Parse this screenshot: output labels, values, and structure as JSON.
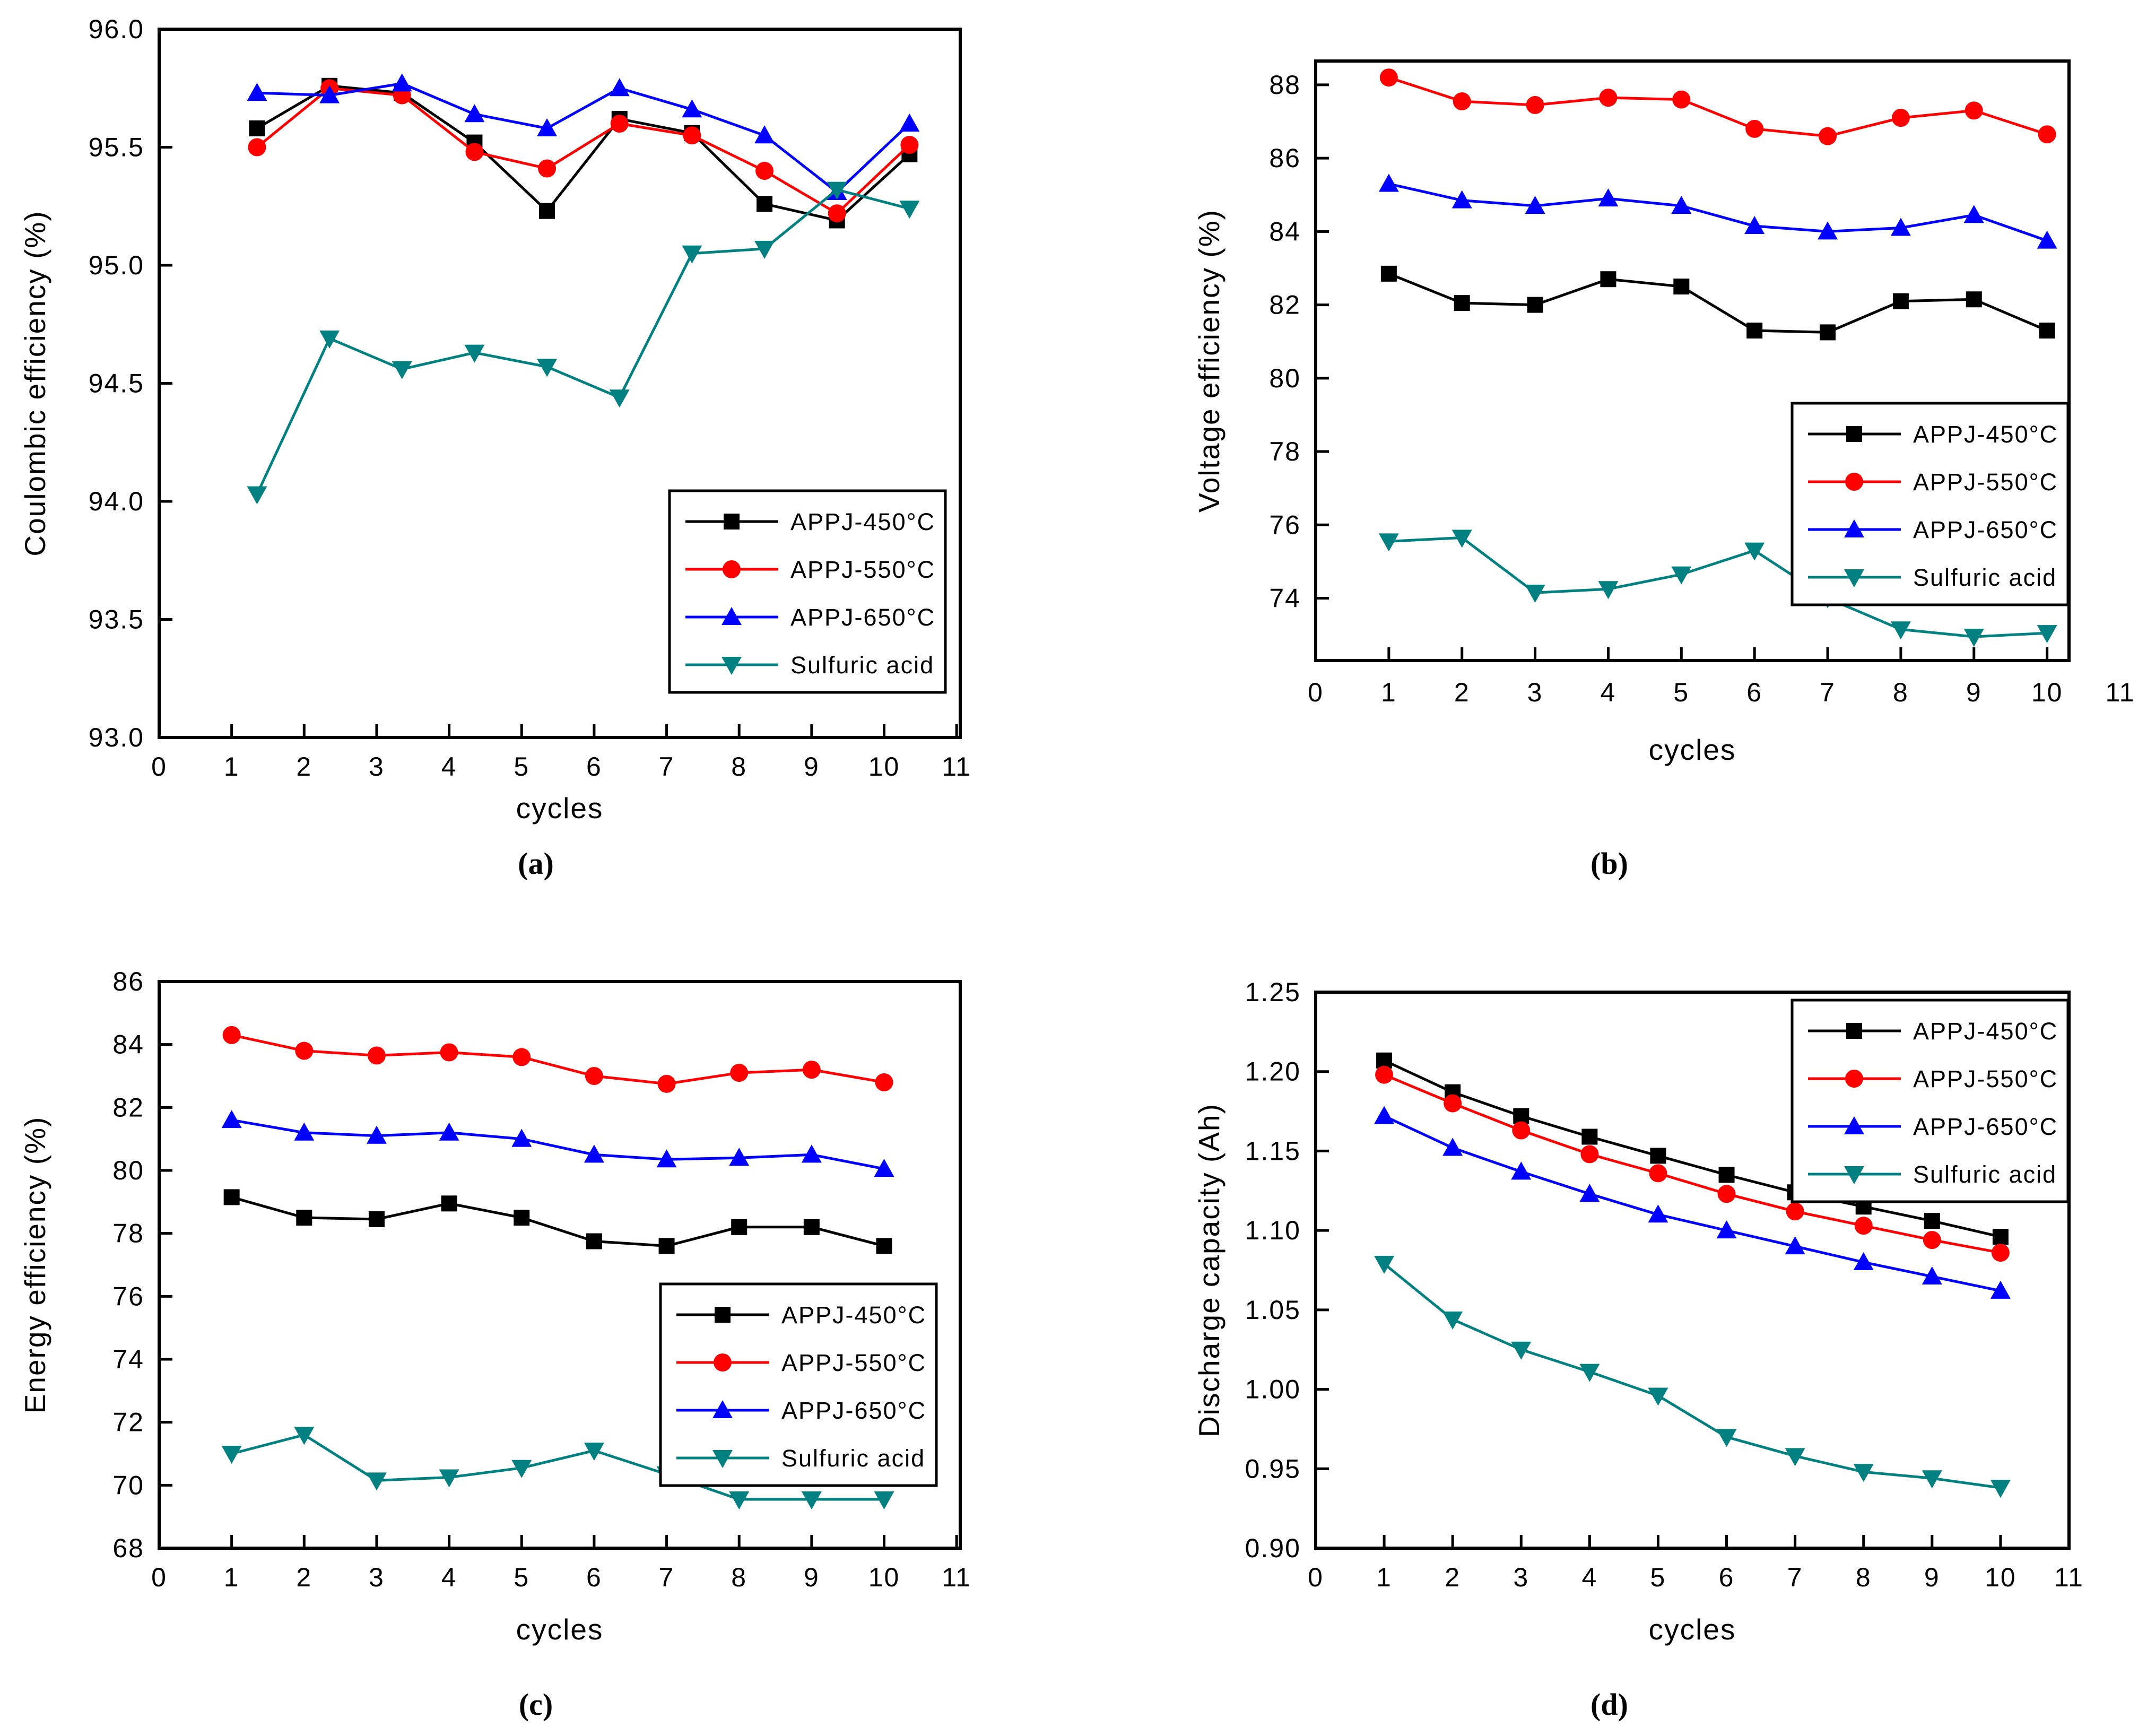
{
  "figure": {
    "background": "#ffffff",
    "text_color": "#000000",
    "series_colors": {
      "appj450": "#000000",
      "appj550": "#ff0000",
      "appj650": "#0000ff",
      "sulfuric_acid": "#008080"
    }
  },
  "chart_data": [
    {
      "id": "a",
      "type": "line",
      "caption": "(a)",
      "title": "",
      "xlabel": "cycles",
      "ylabel": "Coulombic efficiency (%)",
      "x": [
        1,
        2,
        3,
        4,
        5,
        6,
        7,
        8,
        9,
        10
      ],
      "xticks": [
        0,
        1,
        2,
        3,
        4,
        5,
        6,
        7,
        8,
        9,
        10,
        11
      ],
      "xlim": [
        0,
        11.05
      ],
      "ylim": [
        93.0,
        96.0
      ],
      "yticks": [
        93.0,
        93.5,
        94.0,
        94.5,
        95.0,
        95.5,
        96.0
      ],
      "ytick_labels": [
        "93.0",
        "93.5",
        "94.0",
        "94.5",
        "95.0",
        "95.5",
        "96.0"
      ],
      "grid": false,
      "legend_position": "lower right",
      "series": [
        {
          "name": "APPJ-450°C",
          "color": "#000000",
          "marker": "square",
          "values": [
            95.58,
            95.76,
            95.73,
            95.52,
            95.23,
            95.62,
            95.56,
            95.26,
            95.19,
            95.47
          ]
        },
        {
          "name": "APPJ-550°C",
          "color": "#ff0000",
          "marker": "circle",
          "values": [
            95.5,
            95.75,
            95.72,
            95.48,
            95.41,
            95.6,
            95.55,
            95.4,
            95.22,
            95.51
          ]
        },
        {
          "name": "APPJ-650°C",
          "color": "#0000ff",
          "marker": "triangle-up",
          "values": [
            95.73,
            95.72,
            95.77,
            95.64,
            95.58,
            95.75,
            95.66,
            95.55,
            95.31,
            95.6
          ]
        },
        {
          "name": "Sulfuric acid",
          "color": "#008080",
          "marker": "triangle-down",
          "values": [
            94.03,
            94.69,
            94.56,
            94.63,
            94.57,
            94.44,
            95.05,
            95.07,
            95.32,
            95.24
          ]
        }
      ]
    },
    {
      "id": "b",
      "type": "line",
      "caption": "(b)",
      "title": "",
      "xlabel": "cycles",
      "ylabel": "Voltage efficiency (%)",
      "x": [
        1,
        2,
        3,
        4,
        5,
        6,
        7,
        8,
        9,
        10
      ],
      "xticks": [
        0,
        1,
        2,
        3,
        4,
        5,
        6,
        7,
        8,
        9,
        10,
        11
      ],
      "xlim": [
        0,
        10.3
      ],
      "ylim": [
        72.3,
        88.65
      ],
      "yticks": [
        74,
        76,
        78,
        80,
        82,
        84,
        86,
        88
      ],
      "ytick_labels": [
        "74",
        "76",
        "78",
        "80",
        "82",
        "84",
        "86",
        "88"
      ],
      "grid": false,
      "legend_position": "center right",
      "series": [
        {
          "name": "APPJ-450°C",
          "color": "#000000",
          "marker": "square",
          "values": [
            82.85,
            82.05,
            82.0,
            82.7,
            82.5,
            81.3,
            81.25,
            82.1,
            82.15,
            81.3
          ]
        },
        {
          "name": "APPJ-550°C",
          "color": "#ff0000",
          "marker": "circle",
          "values": [
            88.2,
            87.55,
            87.45,
            87.65,
            87.6,
            86.8,
            86.6,
            87.1,
            87.3,
            86.65
          ]
        },
        {
          "name": "APPJ-650°C",
          "color": "#0000ff",
          "marker": "triangle-up",
          "values": [
            85.3,
            84.85,
            84.7,
            84.9,
            84.7,
            84.15,
            84.0,
            84.1,
            84.45,
            83.75
          ]
        },
        {
          "name": "Sulfuric acid",
          "color": "#008080",
          "marker": "triangle-down",
          "values": [
            75.55,
            75.65,
            74.15,
            74.25,
            74.65,
            75.3,
            74.0,
            73.15,
            72.95,
            73.05
          ]
        }
      ]
    },
    {
      "id": "c",
      "type": "line",
      "caption": "(c)",
      "title": "",
      "xlabel": "cycles",
      "ylabel": "Energy efficiency (%)",
      "x": [
        1,
        2,
        3,
        4,
        5,
        6,
        7,
        8,
        9,
        10
      ],
      "xticks": [
        0,
        1,
        2,
        3,
        4,
        5,
        6,
        7,
        8,
        9,
        10,
        11
      ],
      "xlim": [
        0,
        11.05
      ],
      "ylim": [
        68,
        86
      ],
      "yticks": [
        68,
        70,
        72,
        74,
        76,
        78,
        80,
        82,
        84,
        86
      ],
      "ytick_labels": [
        "68",
        "70",
        "72",
        "74",
        "76",
        "78",
        "80",
        "82",
        "84",
        "86"
      ],
      "grid": false,
      "legend_position": "center right",
      "series": [
        {
          "name": "APPJ-450°C",
          "color": "#000000",
          "marker": "square",
          "values": [
            79.15,
            78.5,
            78.45,
            78.95,
            78.5,
            77.75,
            77.6,
            78.2,
            78.2,
            77.6
          ]
        },
        {
          "name": "APPJ-550°C",
          "color": "#ff0000",
          "marker": "circle",
          "values": [
            84.3,
            83.8,
            83.65,
            83.75,
            83.6,
            83.0,
            82.75,
            83.1,
            83.2,
            82.8
          ]
        },
        {
          "name": "APPJ-650°C",
          "color": "#0000ff",
          "marker": "triangle-up",
          "values": [
            81.6,
            81.2,
            81.1,
            81.2,
            81.0,
            80.5,
            80.35,
            80.4,
            80.5,
            80.05
          ]
        },
        {
          "name": "Sulfuric acid",
          "color": "#008080",
          "marker": "triangle-down",
          "values": [
            71.0,
            71.6,
            70.15,
            70.25,
            70.55,
            71.1,
            70.35,
            69.55,
            69.55,
            69.55
          ]
        }
      ]
    },
    {
      "id": "d",
      "type": "line",
      "caption": "(d)",
      "title": "",
      "xlabel": "cycles",
      "ylabel": "Discharge capacity (Ah)",
      "x": [
        1,
        2,
        3,
        4,
        5,
        6,
        7,
        8,
        9,
        10
      ],
      "xticks": [
        0,
        1,
        2,
        3,
        4,
        5,
        6,
        7,
        8,
        9,
        10,
        11
      ],
      "xlim": [
        0,
        11.0
      ],
      "ylim": [
        0.9,
        1.25
      ],
      "yticks": [
        0.9,
        0.95,
        1.0,
        1.05,
        1.1,
        1.15,
        1.2,
        1.25
      ],
      "ytick_labels": [
        "0.90",
        "0.95",
        "1.00",
        "1.05",
        "1.10",
        "1.15",
        "1.20",
        "1.25"
      ],
      "grid": false,
      "legend_position": "upper right",
      "series": [
        {
          "name": "APPJ-450°C",
          "color": "#000000",
          "marker": "square",
          "values": [
            1.207,
            1.187,
            1.172,
            1.159,
            1.147,
            1.135,
            1.124,
            1.115,
            1.106,
            1.096
          ]
        },
        {
          "name": "APPJ-550°C",
          "color": "#ff0000",
          "marker": "circle",
          "values": [
            1.198,
            1.18,
            1.163,
            1.148,
            1.136,
            1.123,
            1.112,
            1.103,
            1.094,
            1.086
          ]
        },
        {
          "name": "APPJ-650°C",
          "color": "#0000ff",
          "marker": "triangle-up",
          "values": [
            1.172,
            1.152,
            1.137,
            1.123,
            1.11,
            1.1,
            1.09,
            1.08,
            1.071,
            1.062
          ]
        },
        {
          "name": "Sulfuric acid",
          "color": "#008080",
          "marker": "triangle-down",
          "values": [
            1.079,
            1.044,
            1.025,
            1.011,
            0.996,
            0.97,
            0.958,
            0.948,
            0.944,
            0.938
          ]
        }
      ]
    }
  ]
}
